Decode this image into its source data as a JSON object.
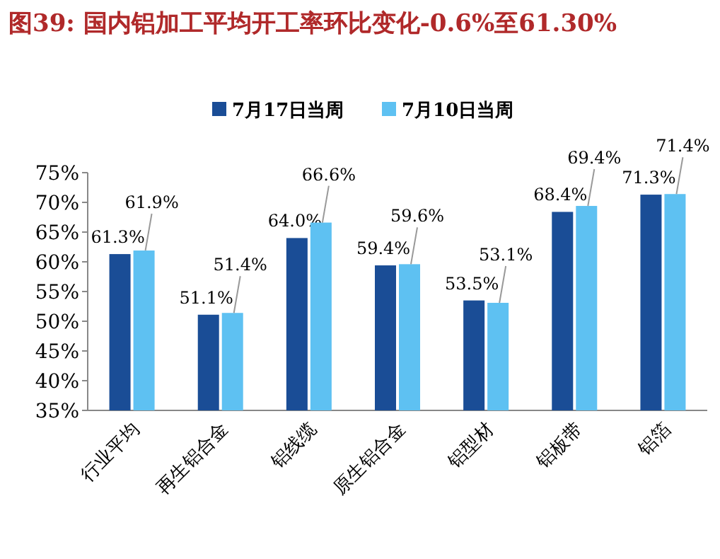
{
  "chart_data": {
    "type": "bar",
    "title": "图39: 国内铝加工平均开工率环比变化-0.6%至61.30%",
    "categories": [
      "行业平均",
      "再生铝合金",
      "铝线缆",
      "原生铝合金",
      "铝型材",
      "铝板带",
      "铝箔"
    ],
    "series": [
      {
        "name": "7月17日当周",
        "color": "#1a4d96",
        "values": [
          61.3,
          51.1,
          64.0,
          59.4,
          53.5,
          68.4,
          71.3
        ],
        "value_labels": [
          "61.3%",
          "51.1%",
          "64.0%",
          "59.4%",
          "53.5%",
          "68.4%",
          "71.3%"
        ]
      },
      {
        "name": "7月10日当周",
        "color": "#5ec1f2",
        "values": [
          61.9,
          51.4,
          66.6,
          59.6,
          53.1,
          69.4,
          71.4
        ],
        "value_labels": [
          "61.9%",
          "51.4%",
          "66.6%",
          "59.6%",
          "53.1%",
          "69.4%",
          "71.4%"
        ]
      }
    ],
    "ylim": [
      35,
      75
    ],
    "yticks": [
      {
        "value": 35,
        "label": "35%"
      },
      {
        "value": 40,
        "label": "40%"
      },
      {
        "value": 45,
        "label": "45%"
      },
      {
        "value": 50,
        "label": "50%"
      },
      {
        "value": 55,
        "label": "55%"
      },
      {
        "value": 60,
        "label": "60%"
      },
      {
        "value": 65,
        "label": "65%"
      },
      {
        "value": 70,
        "label": "70%"
      },
      {
        "value": 75,
        "label": "75%"
      }
    ],
    "legend": "top",
    "grid": false
  }
}
